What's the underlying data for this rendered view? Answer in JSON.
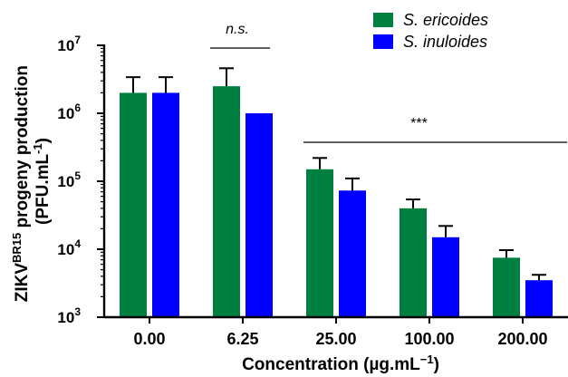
{
  "chart_data": {
    "type": "bar",
    "scale": "log",
    "ylim": [
      1000,
      10000000
    ],
    "ylabel_line1": "ZIKV",
    "ylabel_sup": "BR15",
    "ylabel_line1_rest": " progeny production",
    "ylabel_line2": "(PFU.mL",
    "ylabel_line2_sup": "-1",
    "ylabel_line2_end": ")",
    "xlabel": "Concentration (µg.mL",
    "xlabel_sup": "−1",
    "xlabel_end": ")",
    "y_ticks": [
      {
        "base": "10",
        "exp": "3",
        "value": 1000
      },
      {
        "base": "10",
        "exp": "4",
        "value": 10000
      },
      {
        "base": "10",
        "exp": "5",
        "value": 100000
      },
      {
        "base": "10",
        "exp": "6",
        "value": 1000000
      },
      {
        "base": "10",
        "exp": "7",
        "value": 10000000
      }
    ],
    "categories": [
      "0.00",
      "6.25",
      "25.00",
      "100.00",
      "200.00"
    ],
    "series": [
      {
        "name": "S. ericoides",
        "color": "#008040",
        "values": [
          2000000,
          2500000,
          150000,
          40000,
          7500
        ],
        "errors": [
          3400000,
          4600000,
          220000,
          54000,
          9700
        ]
      },
      {
        "name": "S. inuloides",
        "color": "#0000ff",
        "values": [
          2000000,
          1000000,
          73000,
          15000,
          3500
        ],
        "errors": [
          3400000,
          null,
          110000,
          22000,
          4200
        ]
      }
    ],
    "annotations": [
      {
        "text": "n.s.",
        "from_category": 1,
        "to_category": 1
      },
      {
        "text": "***",
        "from_category": 2,
        "to_category": 4
      }
    ],
    "legend_position": "top-right",
    "grid": false
  }
}
